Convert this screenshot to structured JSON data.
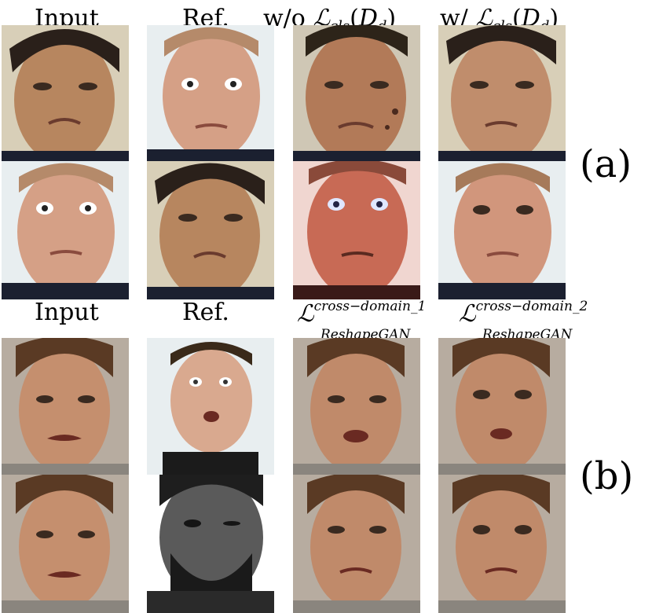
{
  "section_a": {
    "headers": {
      "input": "Input",
      "ref": "Ref.",
      "without_prefix": "w/o",
      "with_prefix": "w/",
      "loss_symbol": "ℒ",
      "loss_subscript": "cls",
      "loss_arg_open": "(",
      "loss_arg": "D",
      "loss_arg_sub": "d",
      "loss_arg_close": ")"
    },
    "tag": "(a)"
  },
  "section_b": {
    "headers": {
      "input": "Input",
      "ref": "Ref.",
      "loss_symbol": "ℒ",
      "loss1_superscript": "cross−domain_1",
      "loss2_superscript": "cross−domain_2",
      "loss_subscript": "ReshapeGAN"
    },
    "tag": "(b)"
  },
  "colors": {
    "skin_warm": "#c58f6e",
    "skin_pale": "#e2b59c",
    "skin_red": "#c86a55",
    "hair_dark": "#2a201a",
    "bg_light": "#e8eef0",
    "bg_beige": "#d8cfc0",
    "bg_grey": "#b7aca0",
    "shirt_dark": "#1b2030"
  }
}
